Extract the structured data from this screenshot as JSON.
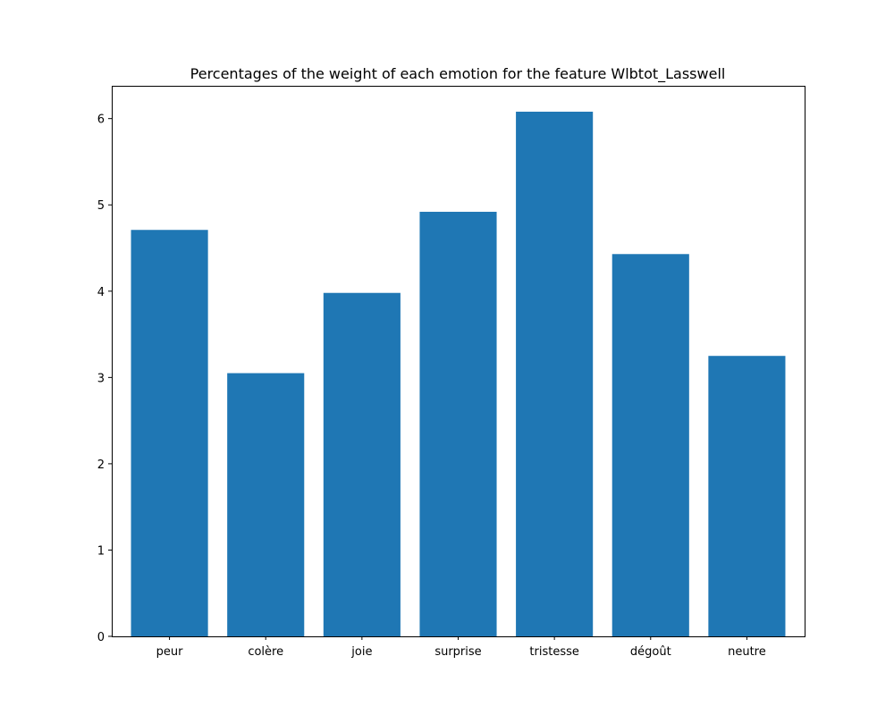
{
  "chart_data": {
    "type": "bar",
    "title": "Percentages of the weight of each emotion for the feature Wlbtot_Lasswell",
    "xlabel": "",
    "ylabel": "",
    "categories": [
      "peur",
      "colère",
      "joie",
      "surprise",
      "tristesse",
      "dégoût",
      "neutre"
    ],
    "values": [
      4.71,
      3.05,
      3.98,
      4.92,
      6.08,
      4.43,
      3.25
    ],
    "ylim": [
      0,
      6.38
    ],
    "yticks": [
      0,
      1,
      2,
      3,
      4,
      5,
      6
    ],
    "bar_color": "#1f77b4",
    "grid": false,
    "legend": null
  }
}
